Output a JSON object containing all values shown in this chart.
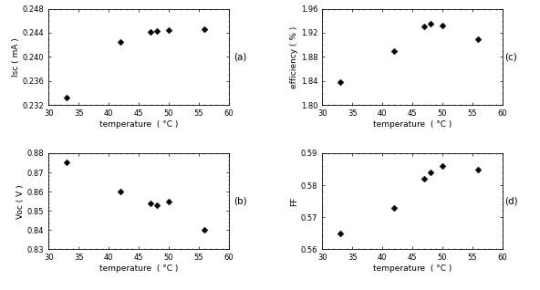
{
  "isc": {
    "x": [
      33,
      42,
      47,
      48,
      50,
      56
    ],
    "y": [
      0.2333,
      0.2425,
      0.2442,
      0.2443,
      0.2445,
      0.2446
    ],
    "ylabel": "Isc ( mA )",
    "xlabel": "temperature  ( °C )",
    "ylim": [
      0.232,
      0.248
    ],
    "xlim": [
      30,
      60
    ],
    "yticks": [
      0.232,
      0.236,
      0.24,
      0.244,
      0.248
    ],
    "xticks": [
      30,
      35,
      40,
      45,
      50,
      55,
      60
    ],
    "label": "(a)"
  },
  "voc": {
    "x": [
      33,
      42,
      47,
      48,
      50,
      56
    ],
    "y": [
      0.875,
      0.86,
      0.854,
      0.853,
      0.855,
      0.84
    ],
    "ylabel": "Voc ( V )",
    "xlabel": "temperature  ( °C )",
    "ylim": [
      0.83,
      0.88
    ],
    "xlim": [
      30,
      60
    ],
    "yticks": [
      0.83,
      0.84,
      0.85,
      0.86,
      0.87,
      0.88
    ],
    "xticks": [
      30,
      35,
      40,
      45,
      50,
      55,
      60
    ],
    "label": "(b)"
  },
  "efficiency": {
    "x": [
      33,
      42,
      47,
      48,
      50,
      56
    ],
    "y": [
      1.838,
      1.89,
      1.93,
      1.935,
      1.932,
      1.91
    ],
    "ylabel": "efficiency ( % )",
    "xlabel": "temperature  ( °C )",
    "ylim": [
      1.8,
      1.96
    ],
    "xlim": [
      30,
      60
    ],
    "yticks": [
      1.8,
      1.84,
      1.88,
      1.92,
      1.96
    ],
    "xticks": [
      30,
      35,
      40,
      45,
      50,
      55,
      60
    ],
    "label": "(c)"
  },
  "ff": {
    "x": [
      33,
      42,
      47,
      48,
      50,
      56
    ],
    "y": [
      0.565,
      0.573,
      0.582,
      0.584,
      0.586,
      0.585
    ],
    "ylabel": "FF",
    "xlabel": "temperature  ( °C )",
    "ylim": [
      0.56,
      0.59
    ],
    "xlim": [
      30,
      60
    ],
    "yticks": [
      0.56,
      0.57,
      0.58,
      0.59
    ],
    "xticks": [
      30,
      35,
      40,
      45,
      50,
      55,
      60
    ],
    "label": "(d)"
  },
  "marker": "D",
  "markersize": 3.5,
  "fontsize": 6.5,
  "tick_fontsize": 6,
  "label_fontsize": 7.5
}
